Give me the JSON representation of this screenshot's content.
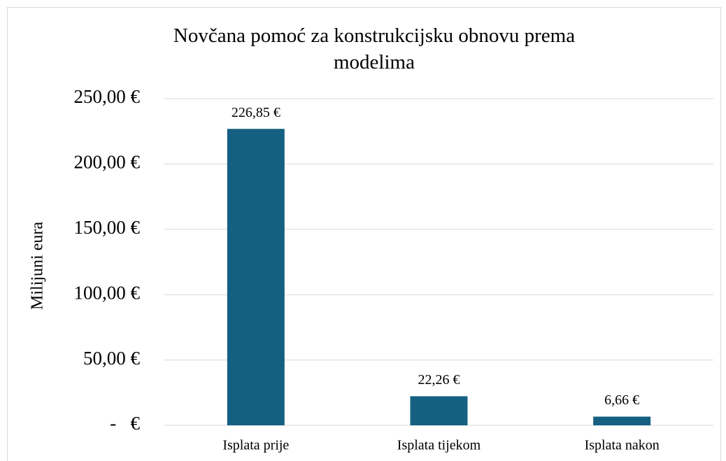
{
  "chart_data": {
    "type": "bar",
    "title": "Novčana pomoć za konstrukcijsku obnovu prema modelima",
    "ylabel": "Milijuni eura",
    "categories": [
      "Isplata prije",
      "Isplata tijekom",
      "Isplata nakon"
    ],
    "values": [
      226.85,
      22.26,
      6.66
    ],
    "value_labels": [
      "226,85 €",
      "22,26 €",
      "6,66 €"
    ],
    "color": "#156082",
    "ylim": [
      0,
      250
    ],
    "yticks": [
      {
        "value": 0,
        "label": "-   €"
      },
      {
        "value": 50,
        "label": "50,00 €"
      },
      {
        "value": 100,
        "label": "100,00 €"
      },
      {
        "value": 150,
        "label": "150,00 €"
      },
      {
        "value": 200,
        "label": "200,00 €"
      },
      {
        "value": 250,
        "label": "250,00 €"
      }
    ],
    "grid": true
  }
}
